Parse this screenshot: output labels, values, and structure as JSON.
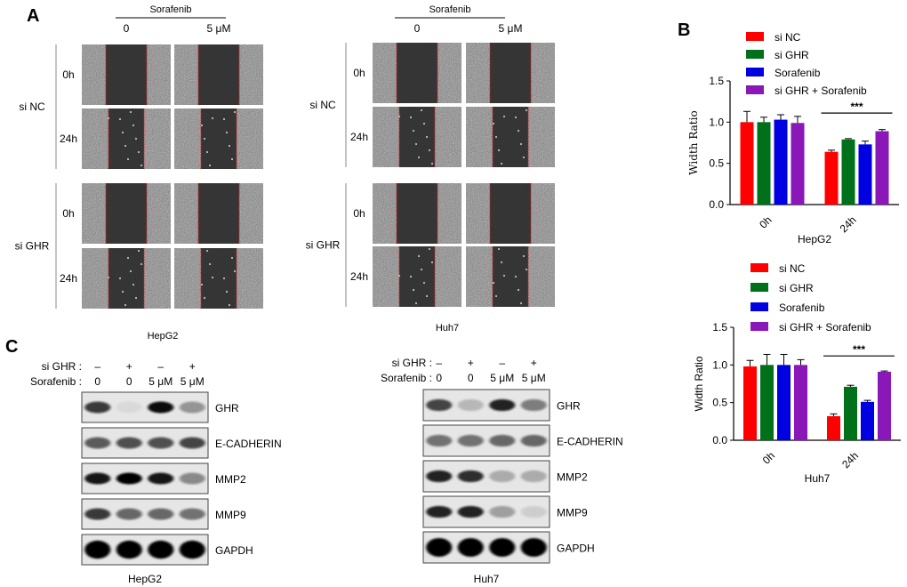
{
  "panel_letters": [
    "A",
    "B",
    "C"
  ],
  "scratch": {
    "treatment_header": "Sorafenib",
    "dose_labels": [
      "0",
      "5 μM"
    ],
    "time_labels": [
      "0h",
      "24h"
    ],
    "group_labels": [
      "si NC",
      "si GHR"
    ],
    "cell_lines": [
      "HepG2",
      "Huh7"
    ]
  },
  "western": {
    "row_labels": [
      "si GHR :",
      "Sorafenib :"
    ],
    "sighr_signs": [
      "–",
      "+",
      "–",
      "+"
    ],
    "sorafenib_doses": [
      "0",
      "0",
      "5 μM",
      "5 μM"
    ],
    "proteins": [
      "GHR",
      "E-CADHERIN",
      "MMP2",
      "MMP9",
      "GAPDH"
    ],
    "cell_lines": [
      "HepG2",
      "Huh7"
    ],
    "bands": {
      "HepG2": [
        [
          0.75,
          0.05,
          0.95,
          0.35
        ],
        [
          0.6,
          0.65,
          0.65,
          0.7
        ],
        [
          0.9,
          1.0,
          0.9,
          0.4
        ],
        [
          0.75,
          0.55,
          0.55,
          0.5
        ],
        [
          1.0,
          1.0,
          1.0,
          1.0
        ]
      ],
      "Huh7": [
        [
          0.7,
          0.2,
          0.85,
          0.45
        ],
        [
          0.5,
          0.5,
          0.55,
          0.55
        ],
        [
          0.85,
          0.8,
          0.25,
          0.25
        ],
        [
          0.85,
          0.85,
          0.3,
          0.1
        ],
        [
          1.0,
          1.0,
          1.0,
          1.0
        ]
      ]
    }
  },
  "chart_data": [
    {
      "type": "bar",
      "cell_line": "HepG2",
      "categories": [
        "0h",
        "24h"
      ],
      "series": [
        {
          "name": "si NC",
          "color": "#ff0000",
          "values": [
            1.0,
            0.64
          ],
          "errors": [
            0.13,
            0.02
          ]
        },
        {
          "name": "si GHR",
          "color": "#00701a",
          "values": [
            1.0,
            0.79
          ],
          "errors": [
            0.06,
            0.01
          ]
        },
        {
          "name": "Sorafenib",
          "color": "#0000e0",
          "values": [
            1.03,
            0.73
          ],
          "errors": [
            0.06,
            0.04
          ]
        },
        {
          "name": "si GHR + Sorafenib",
          "color": "#8a17b8",
          "values": [
            0.99,
            0.89
          ],
          "errors": [
            0.08,
            0.02
          ]
        }
      ],
      "ylabel": "Width Ratio",
      "xlabel": "HepG2",
      "ylim": [
        0,
        1.5
      ],
      "yticks": [
        "0.0",
        "0.5",
        "1.0",
        "1.5"
      ],
      "significance": "***",
      "legend": "top"
    },
    {
      "type": "bar",
      "cell_line": "Huh7",
      "categories": [
        "0h",
        "24h"
      ],
      "series": [
        {
          "name": "si NC",
          "color": "#ff0000",
          "values": [
            0.98,
            0.32
          ],
          "errors": [
            0.08,
            0.03
          ]
        },
        {
          "name": "si GHR",
          "color": "#00701a",
          "values": [
            1.0,
            0.71
          ],
          "errors": [
            0.14,
            0.02
          ]
        },
        {
          "name": "Sorafenib",
          "color": "#0000e0",
          "values": [
            1.0,
            0.51
          ],
          "errors": [
            0.14,
            0.02
          ]
        },
        {
          "name": "si GHR + Sorafenib",
          "color": "#8a17b8",
          "values": [
            1.0,
            0.91
          ],
          "errors": [
            0.07,
            0.01
          ]
        }
      ],
      "ylabel": "Width Ratio",
      "xlabel": "Huh7",
      "ylim": [
        0,
        1.5
      ],
      "yticks": [
        "0.0",
        "0.5",
        "1.0",
        "1.5"
      ],
      "significance": "***",
      "legend": "top"
    }
  ]
}
